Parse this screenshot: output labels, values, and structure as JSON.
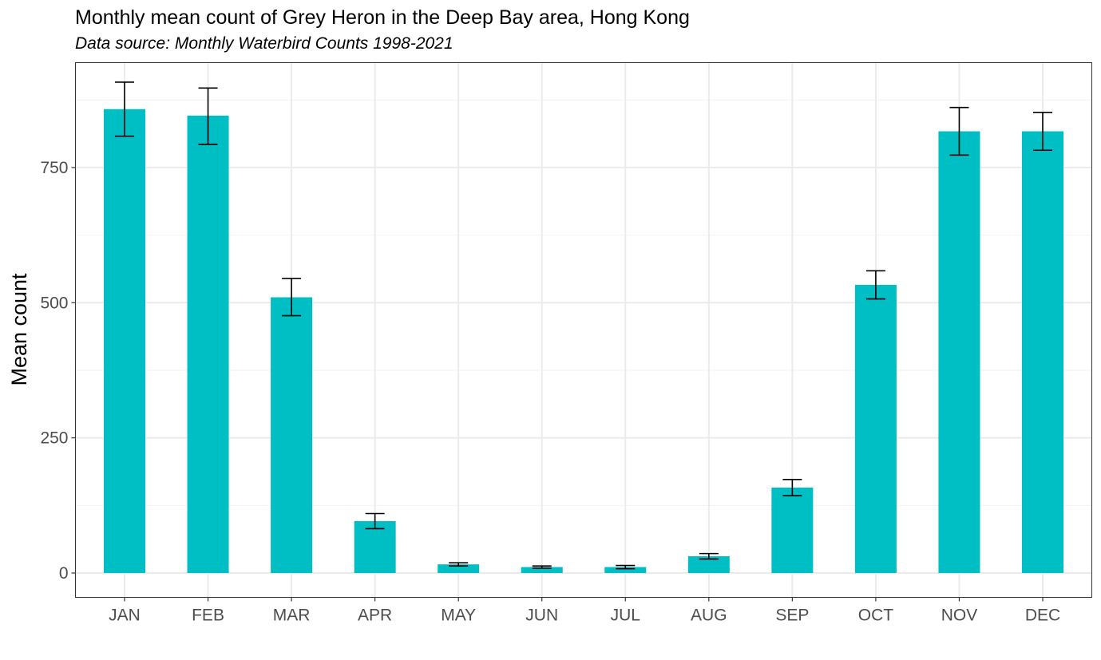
{
  "chart_data": {
    "type": "bar",
    "title": "Monthly mean count of Grey Heron in the Deep Bay area, Hong Kong",
    "subtitle": "Data source: Monthly Waterbird Counts 1998-2021",
    "xlabel": "",
    "ylabel": "Mean count",
    "categories": [
      "JAN",
      "FEB",
      "MAR",
      "APR",
      "MAY",
      "JUN",
      "JUL",
      "AUG",
      "SEP",
      "OCT",
      "NOV",
      "DEC"
    ],
    "values": [
      858,
      846,
      510,
      96,
      16,
      11,
      11,
      31,
      158,
      533,
      817,
      817
    ],
    "error_low": [
      808,
      793,
      476,
      82,
      13,
      9,
      8,
      26,
      143,
      507,
      773,
      782
    ],
    "error_high": [
      908,
      897,
      545,
      110,
      19,
      13,
      14,
      36,
      173,
      559,
      861,
      852
    ],
    "ylim": [
      -45,
      944
    ],
    "yticks": [
      0,
      250,
      500,
      750
    ],
    "ytick_labels": [
      "0",
      "250",
      "500",
      "750"
    ],
    "grid": true,
    "legend": "none",
    "bar_color": "#00BFC4",
    "errorbar_color": "#000000"
  }
}
